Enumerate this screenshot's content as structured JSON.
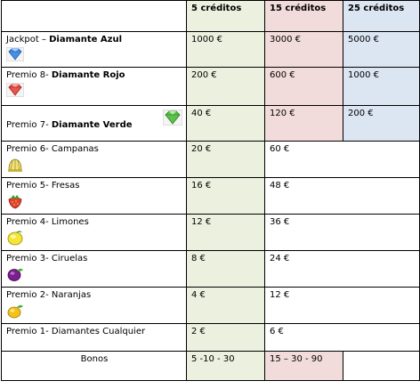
{
  "header": {
    "col5": "5 créditos",
    "col15": "15 créditos",
    "col25": "25 créditos"
  },
  "rows": [
    {
      "prefix": "Jackpot – ",
      "bold": "Diamante Azul",
      "icon": "blue-diamond-icon",
      "v5": "1000 €",
      "v15": "3000 €",
      "v25": "5000 €"
    },
    {
      "prefix": "Premio 8- ",
      "bold": "Diamante Rojo",
      "icon": "red-diamond-icon",
      "v5": "200 €",
      "v15": "600 €",
      "v25": "1000 €"
    },
    {
      "prefix": "Premio 7- ",
      "bold": "Diamante Verde",
      "icon": "green-diamond-icon",
      "v5": "40 €",
      "v15": "120 €",
      "v25": "200 €"
    },
    {
      "prefix": "Premio 6-  Campanas",
      "bold": "",
      "icon": "bell-icon",
      "v5": "20 €",
      "v15": "60 €"
    },
    {
      "prefix": "Premio 5-  Fresas",
      "bold": "",
      "icon": "strawberry-icon",
      "v5": "16 €",
      "v15": "48 €"
    },
    {
      "prefix": "Premio 4-  Limones",
      "bold": "",
      "icon": "lemon-icon",
      "v5": "12 €",
      "v15": "36 €"
    },
    {
      "prefix": "Premio 3-  Ciruelas",
      "bold": "",
      "icon": "plum-icon",
      "v5": "8 €",
      "v15": "24 €"
    },
    {
      "prefix": "Premio 2-  Naranjas",
      "bold": "",
      "icon": "orange-icon",
      "v5": "4 €",
      "v15": "12 €"
    },
    {
      "prefix": "Premio 1- Diamantes Cualquier",
      "bold": "",
      "icon": "",
      "v5": "2 €",
      "v15": "6 €"
    }
  ],
  "bonus": {
    "label": "Bonos",
    "v5": "5 -10 - 30",
    "v15": "15 – 30 - 90"
  },
  "colors": {
    "green_col": "#ebf1de",
    "red_col": "#f2dcdb",
    "blue_col": "#dce6f2"
  }
}
